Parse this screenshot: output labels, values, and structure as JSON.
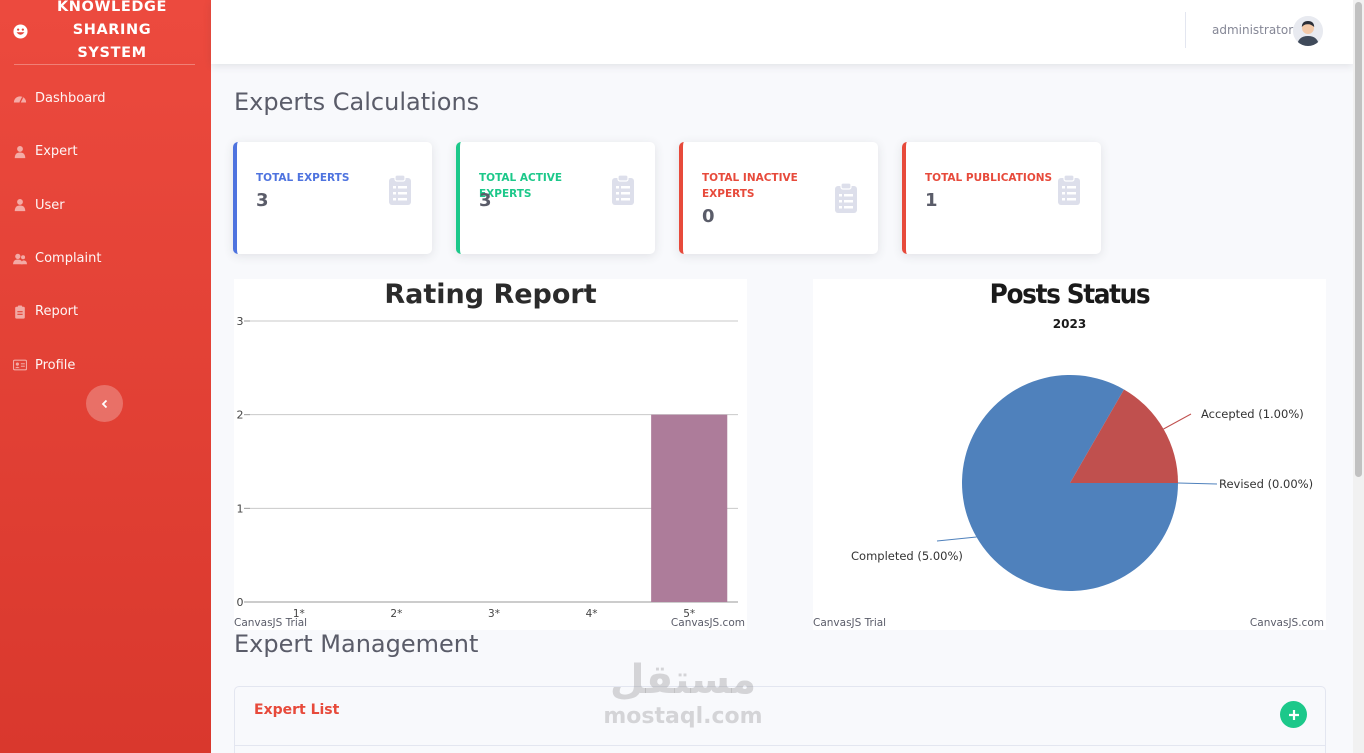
{
  "sidebar": {
    "brand": "KNOWLEDGE SHARING SYSTEM",
    "items": [
      {
        "label": "Dashboard",
        "icon": "tachometer-icon"
      },
      {
        "label": "Expert",
        "icon": "user-icon"
      },
      {
        "label": "User",
        "icon": "user-icon"
      },
      {
        "label": "Complaint",
        "icon": "users-icon"
      },
      {
        "label": "Report",
        "icon": "clipboard-icon"
      },
      {
        "label": "Profile",
        "icon": "id-card-icon"
      }
    ]
  },
  "topbar": {
    "user_name": "administrator"
  },
  "page": {
    "heading": "Experts Calculations",
    "section_heading": "Expert Management"
  },
  "stats": [
    {
      "label": "TOTAL EXPERTS",
      "value": "3",
      "color": "#4e73df"
    },
    {
      "label": "TOTAL ACTIVE EXPERTS",
      "value": "3",
      "color": "#1cc88a"
    },
    {
      "label": "TOTAL INACTIVE EXPERTS",
      "value": "0",
      "color": "#e74a3b"
    },
    {
      "label": "TOTAL PUBLICATIONS",
      "value": "1",
      "color": "#e74a3b"
    }
  ],
  "expert_list": {
    "title": "Expert List"
  },
  "watermark": {
    "arabic": "مستقل",
    "latin": "mostaql.com"
  },
  "chart_data": [
    {
      "type": "bar",
      "title": "Rating Report",
      "categories": [
        "1*",
        "2*",
        "3*",
        "4*",
        "5*"
      ],
      "values": [
        0,
        0,
        0,
        0,
        2
      ],
      "ylim": [
        0,
        3
      ],
      "yticks": [
        "0",
        "1",
        "2",
        "3"
      ],
      "grid": true,
      "bar_color": "#ad7c9a",
      "footer_left": "CanvasJS Trial",
      "footer_right": "CanvasJS.com"
    },
    {
      "type": "pie",
      "title": "Posts Status",
      "subtitle": "2023",
      "slices": [
        {
          "label": "Completed",
          "value": 5,
          "text": "Completed (5.00%)",
          "color": "#4f81bc"
        },
        {
          "label": "Accepted",
          "value": 1,
          "text": "Accepted (1.00%)",
          "color": "#c0504e"
        },
        {
          "label": "Revised",
          "value": 0,
          "text": "Revised (0.00%)",
          "color": "#9bbb58"
        }
      ],
      "footer_left": "CanvasJS Trial",
      "footer_right": "CanvasJS.com"
    }
  ]
}
